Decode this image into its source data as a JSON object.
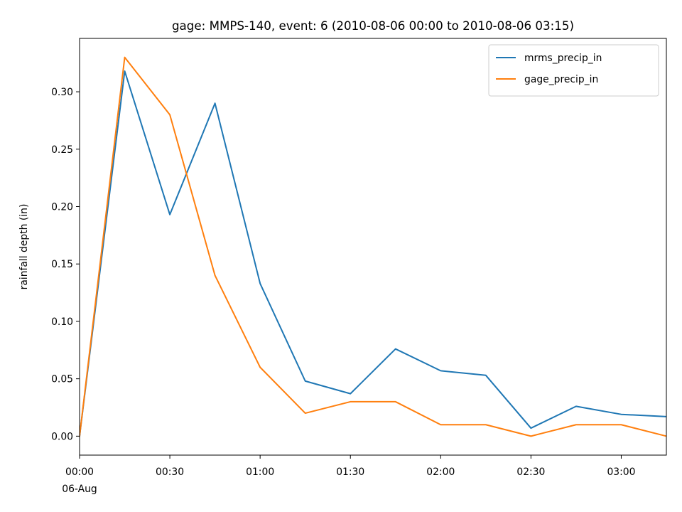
{
  "chart_data": {
    "type": "line",
    "title": "gage: MMPS-140, event: 6 (2010-08-06 00:00 to 2010-08-06 03:15)",
    "xlabel": "",
    "ylabel": "rainfall depth (in)",
    "x": [
      "00:00",
      "00:15",
      "00:30",
      "00:45",
      "01:00",
      "01:15",
      "01:30",
      "01:45",
      "02:00",
      "02:15",
      "02:30",
      "02:45",
      "03:00",
      "03:15"
    ],
    "x_minutes": [
      0,
      15,
      30,
      45,
      60,
      75,
      90,
      105,
      120,
      135,
      150,
      165,
      180,
      195
    ],
    "xlim": [
      0,
      195
    ],
    "ylim": [
      -0.0165,
      0.3465
    ],
    "x_ticks": [
      {
        "minute": 0,
        "label": "00:00",
        "sublabel": "06-Aug"
      },
      {
        "minute": 30,
        "label": "00:30"
      },
      {
        "minute": 60,
        "label": "01:00"
      },
      {
        "minute": 90,
        "label": "01:30"
      },
      {
        "minute": 120,
        "label": "02:00"
      },
      {
        "minute": 150,
        "label": "02:30"
      },
      {
        "minute": 180,
        "label": "03:00"
      }
    ],
    "y_ticks": [
      {
        "value": 0.0,
        "label": "0.00"
      },
      {
        "value": 0.05,
        "label": "0.05"
      },
      {
        "value": 0.1,
        "label": "0.10"
      },
      {
        "value": 0.15,
        "label": "0.15"
      },
      {
        "value": 0.2,
        "label": "0.20"
      },
      {
        "value": 0.25,
        "label": "0.25"
      },
      {
        "value": 0.3,
        "label": "0.30"
      }
    ],
    "grid": false,
    "legend_position": "top-right",
    "series": [
      {
        "name": "mrms_precip_in",
        "color": "#1f77b4",
        "values": [
          0.0,
          0.318,
          0.193,
          0.29,
          0.133,
          0.048,
          0.037,
          0.076,
          0.057,
          0.053,
          0.007,
          0.026,
          0.019,
          0.017
        ]
      },
      {
        "name": "gage_precip_in",
        "color": "#ff7f0e",
        "values": [
          0.0,
          0.33,
          0.28,
          0.14,
          0.06,
          0.02,
          0.03,
          0.03,
          0.01,
          0.01,
          0.0,
          0.01,
          0.01,
          0.0
        ]
      }
    ]
  }
}
